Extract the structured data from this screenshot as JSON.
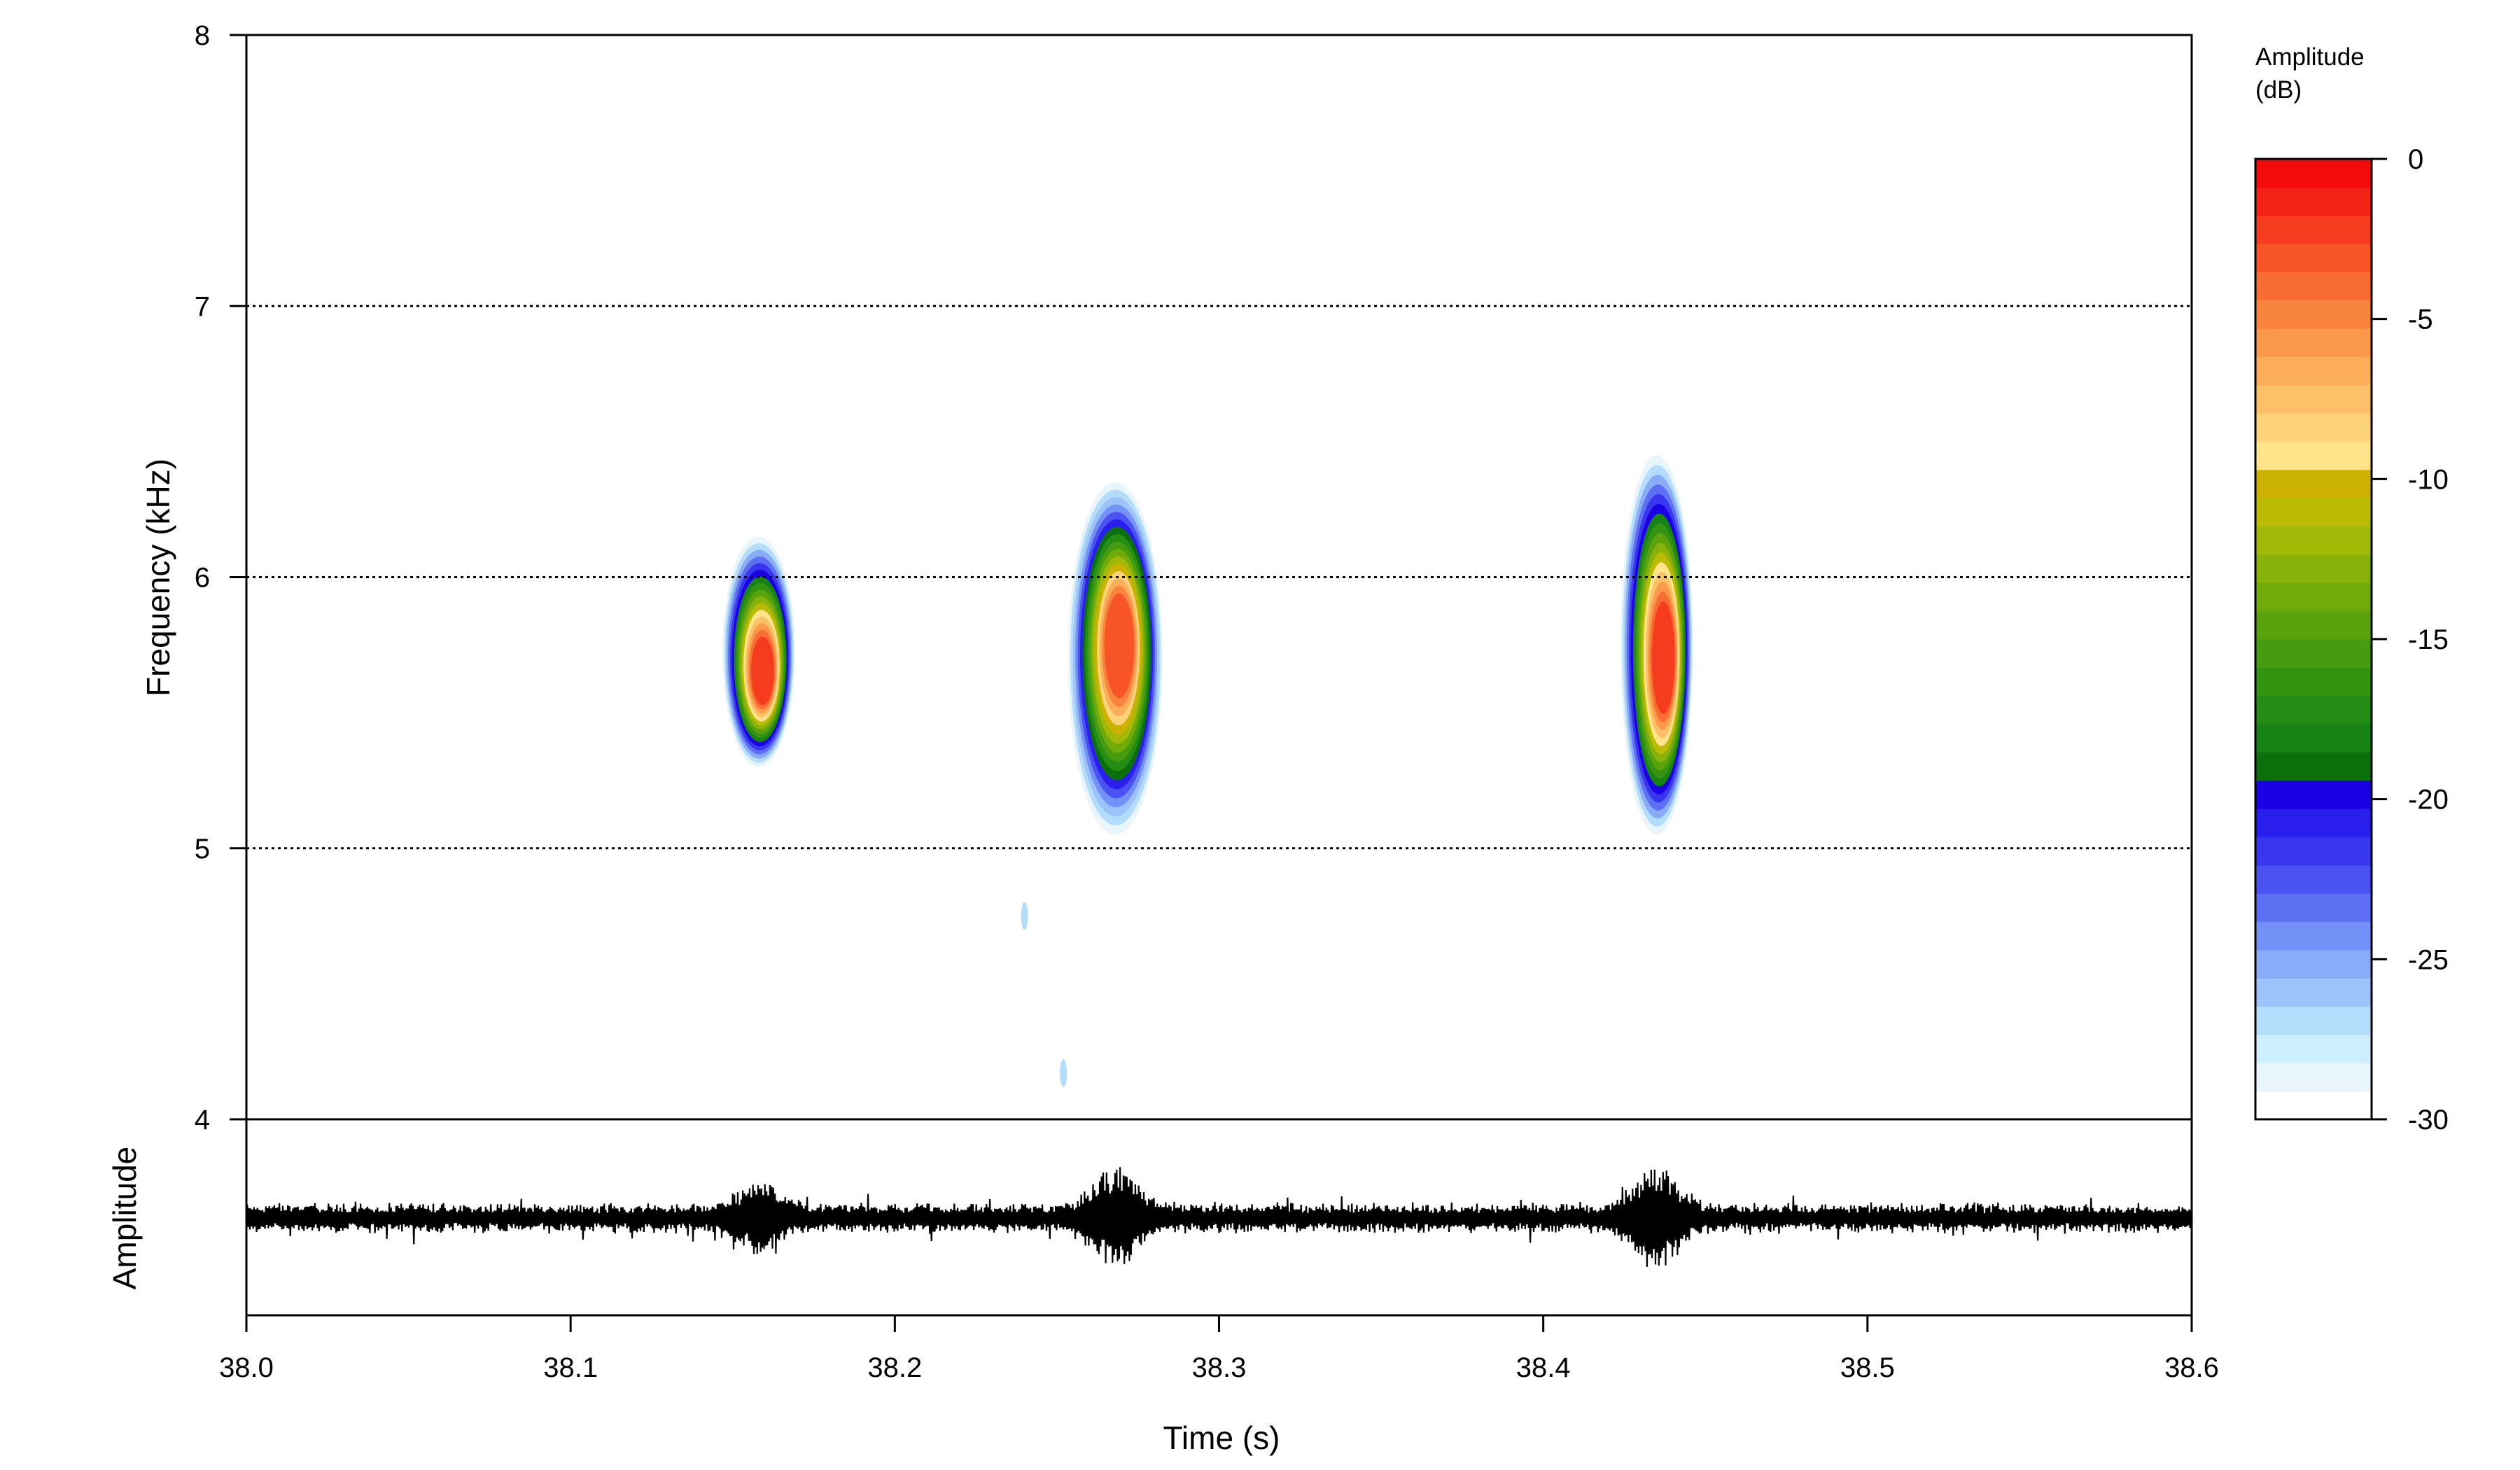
{
  "chart_data": {
    "type": "heatmap",
    "title": "",
    "xlabel": "Time (s)",
    "ylabel": "Frequency (kHz)",
    "oscillogram_label": "Amplitude",
    "xlim": [
      38.0,
      38.6
    ],
    "ylim": [
      4,
      8
    ],
    "x_ticks": [
      "38.0",
      "38.1",
      "38.2",
      "38.3",
      "38.4",
      "38.5",
      "38.6"
    ],
    "y_ticks": [
      "4",
      "5",
      "6",
      "7",
      "8"
    ],
    "gridlines_kHz": [
      5,
      6,
      7
    ],
    "grid": "dotted horizontal",
    "legend": {
      "title_line1": "Amplitude",
      "title_line2": "(dB)",
      "placement": "right",
      "range_dB": [
        -30,
        0
      ],
      "ticks": [
        "0",
        "-5",
        "-10",
        "-15",
        "-20",
        "-25",
        "-30"
      ]
    },
    "colors": [
      "#ffffff",
      "#e8f6fb",
      "#cdeffd",
      "#b4dcfb",
      "#9ec3fa",
      "#8aabf8",
      "#7391f6",
      "#5d70f4",
      "#4a52f2",
      "#3836ef",
      "#2a1eec",
      "#1c00e5",
      "#0b6f0b",
      "#178317",
      "#248d15",
      "#349412",
      "#469c0f",
      "#5ba30d",
      "#71aa0b",
      "#88b20a",
      "#a2b907",
      "#bbbb05",
      "#cbb203",
      "#ffe48c",
      "#fdd37a",
      "#fcc168",
      "#fbad58",
      "#fa994a",
      "#f9843d",
      "#f86d32",
      "#f75528",
      "#f53c1f",
      "#f42214",
      "#f30a0a"
    ],
    "series": [
      {
        "name": "",
        "time_s": 38.158,
        "peak_kHz": 5.65,
        "low_kHz": 5.3,
        "high_kHz": 6.15,
        "peak_dB": -1.5
      },
      {
        "name": "",
        "time_s": 38.268,
        "peak_kHz": 5.75,
        "low_kHz": 5.05,
        "high_kHz": 6.35,
        "peak_dB": -2.5
      },
      {
        "name": "",
        "time_s": 38.435,
        "peak_kHz": 5.7,
        "low_kHz": 5.05,
        "high_kHz": 6.45,
        "peak_dB": -1.5
      }
    ],
    "outliers": [
      {
        "time_s": 38.24,
        "freq_kHz": 4.75
      },
      {
        "time_s": 38.252,
        "freq_kHz": 4.17
      }
    ]
  }
}
